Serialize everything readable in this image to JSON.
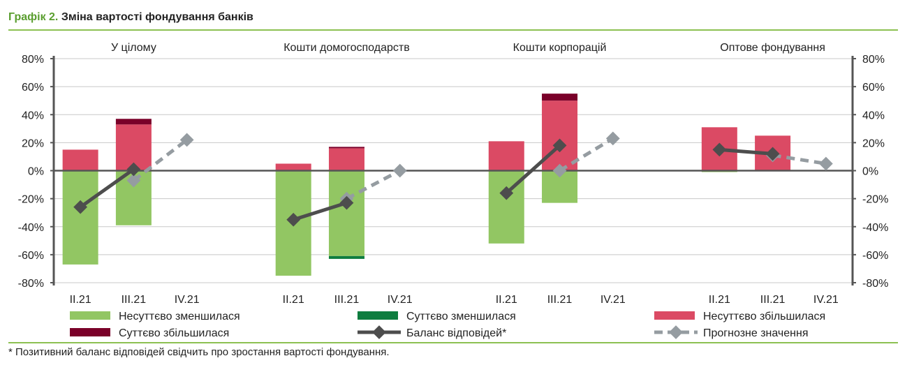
{
  "title_prefix": "Графік 2.",
  "title": "Зміна вартості фондування банків",
  "footnote": "* Позитивний баланс відповідей свідчить про зростання вартості фондування.",
  "chart_data": {
    "type": "bar",
    "ylim": [
      -80,
      80
    ],
    "yticks": [
      "80%",
      "60%",
      "40%",
      "20%",
      "0%",
      "-20%",
      "-40%",
      "-60%",
      "-80%"
    ],
    "ytick_values": [
      80,
      60,
      40,
      20,
      0,
      -20,
      -40,
      -60,
      -80
    ],
    "categories": [
      "II.21",
      "III.21",
      "IV.21"
    ],
    "grid": true,
    "legend_placement": "bottom",
    "colors": {
      "slightly_decreased": "#92c663",
      "significantly_decreased": "#0e7d3f",
      "slightly_increased": "#db4a64",
      "significantly_increased": "#7a0029",
      "balance": "#4d4d4d",
      "forecast": "#959ca1"
    },
    "legend": [
      "Несуттєво зменшилася",
      "Суттєво зменшилася",
      "Несуттєво збільшилася",
      "Суттєво збільшилася",
      "Баланс відповідей*",
      "Прогнозне значення"
    ],
    "panels": [
      {
        "name": "У цілому",
        "slightly_decreased": [
          -67,
          -39,
          null
        ],
        "significantly_decreased": [
          0,
          0,
          null
        ],
        "slightly_increased": [
          15,
          33,
          null
        ],
        "significantly_increased": [
          0,
          4,
          null
        ],
        "balance": [
          -26,
          1,
          null
        ],
        "forecast": [
          null,
          -7,
          22
        ]
      },
      {
        "name": "Кошти домогосподарств",
        "slightly_decreased": [
          -75,
          -61,
          null
        ],
        "significantly_decreased": [
          0,
          -2,
          null
        ],
        "slightly_increased": [
          5,
          16,
          null
        ],
        "significantly_increased": [
          0,
          1,
          null
        ],
        "balance": [
          -35,
          -23,
          null
        ],
        "forecast": [
          null,
          -20,
          0
        ]
      },
      {
        "name": "Кошти корпорацій",
        "slightly_decreased": [
          -52,
          -23,
          null
        ],
        "significantly_decreased": [
          0,
          0,
          null
        ],
        "slightly_increased": [
          21,
          50,
          null
        ],
        "significantly_increased": [
          0,
          5,
          null
        ],
        "balance": [
          -16,
          18,
          null
        ],
        "forecast": [
          null,
          0,
          23
        ]
      },
      {
        "name": "Оптове фондування",
        "slightly_decreased": [
          -1,
          0,
          null
        ],
        "significantly_decreased": [
          0,
          0,
          null
        ],
        "slightly_increased": [
          31,
          25,
          null
        ],
        "significantly_increased": [
          0,
          0,
          null
        ],
        "balance": [
          15,
          12,
          null
        ],
        "forecast": [
          null,
          11,
          5
        ]
      }
    ]
  }
}
